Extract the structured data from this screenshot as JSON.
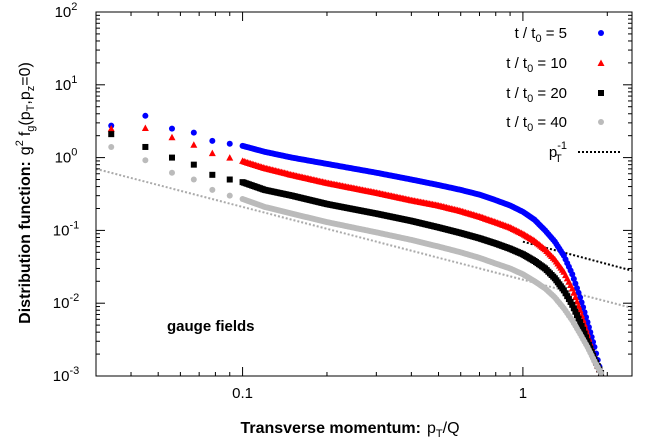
{
  "chart_data": {
    "type": "scatter",
    "xscale": "log",
    "yscale": "log",
    "xlim": [
      0.03,
      2.45
    ],
    "ylim": [
      0.001,
      100
    ],
    "xticks": [
      {
        "value": 0.1,
        "label": "0.1"
      },
      {
        "value": 1,
        "label": "1"
      }
    ],
    "yticks": [
      {
        "value": 0.001,
        "base": "10",
        "exp": "-3"
      },
      {
        "value": 0.01,
        "base": "10",
        "exp": "-2"
      },
      {
        "value": 0.1,
        "base": "10",
        "exp": "-1"
      },
      {
        "value": 1,
        "base": "10",
        "exp": "0"
      },
      {
        "value": 10,
        "base": "10",
        "exp": "1"
      },
      {
        "value": 100,
        "base": "10",
        "exp": "2"
      }
    ],
    "xlabel": {
      "bold": "Transverse momentum:",
      "var": "p",
      "sub": "T",
      "rest": "/Q"
    },
    "ylabel": {
      "bold": "Distribution function:",
      "g": "g",
      "gexp": "2",
      "f": "f",
      "fsub": "g",
      "args": "(p",
      "a1": "T",
      "mid": ",p",
      "a2": "z",
      "end": "=0)"
    },
    "annotation": "gauge fields",
    "legend_position": "top-right",
    "series": [
      {
        "name": {
          "pre": "t / t",
          "sub": "0",
          "post": " =   5"
        },
        "color": "#0000ff",
        "marker": "circle",
        "points": [
          [
            0.034,
            2.75
          ],
          [
            0.045,
            3.75
          ],
          [
            0.056,
            2.5
          ],
          [
            0.067,
            2.2
          ],
          [
            0.078,
            1.7
          ],
          [
            0.09,
            1.55
          ],
          [
            0.1,
            1.45
          ],
          [
            0.12,
            1.2
          ],
          [
            0.15,
            1.0
          ],
          [
            0.2,
            0.82
          ],
          [
            0.3,
            0.62
          ],
          [
            0.4,
            0.5
          ],
          [
            0.5,
            0.42
          ],
          [
            0.6,
            0.36
          ],
          [
            0.7,
            0.31
          ],
          [
            0.8,
            0.26
          ],
          [
            0.9,
            0.22
          ],
          [
            1.0,
            0.18
          ],
          [
            1.1,
            0.14
          ],
          [
            1.2,
            0.1
          ],
          [
            1.3,
            0.07
          ],
          [
            1.4,
            0.045
          ],
          [
            1.5,
            0.025
          ],
          [
            1.6,
            0.012
          ],
          [
            1.7,
            0.0055
          ],
          [
            1.8,
            0.0025
          ],
          [
            1.9,
            0.0011
          ]
        ]
      },
      {
        "name": {
          "pre": "t / t",
          "sub": "0",
          "post": " = 10"
        },
        "color": "#ff0000",
        "marker": "triangle",
        "points": [
          [
            0.034,
            2.5
          ],
          [
            0.045,
            2.55
          ],
          [
            0.056,
            1.9
          ],
          [
            0.067,
            1.5
          ],
          [
            0.078,
            1.15
          ],
          [
            0.09,
            1.0
          ],
          [
            0.1,
            0.9
          ],
          [
            0.12,
            0.72
          ],
          [
            0.15,
            0.58
          ],
          [
            0.2,
            0.45
          ],
          [
            0.3,
            0.33
          ],
          [
            0.4,
            0.26
          ],
          [
            0.5,
            0.22
          ],
          [
            0.6,
            0.185
          ],
          [
            0.7,
            0.155
          ],
          [
            0.8,
            0.13
          ],
          [
            0.9,
            0.11
          ],
          [
            1.0,
            0.09
          ],
          [
            1.1,
            0.072
          ],
          [
            1.2,
            0.055
          ],
          [
            1.3,
            0.04
          ],
          [
            1.4,
            0.027
          ],
          [
            1.5,
            0.016
          ],
          [
            1.6,
            0.008
          ],
          [
            1.7,
            0.0038
          ],
          [
            1.8,
            0.0018
          ],
          [
            1.9,
            0.0011
          ]
        ]
      },
      {
        "name": {
          "pre": "t / t",
          "sub": "0",
          "post": " = 20"
        },
        "color": "#000000",
        "marker": "square",
        "points": [
          [
            0.034,
            2.1
          ],
          [
            0.045,
            1.4
          ],
          [
            0.056,
            1.0
          ],
          [
            0.067,
            0.8
          ],
          [
            0.078,
            0.58
          ],
          [
            0.09,
            0.5
          ],
          [
            0.1,
            0.46
          ],
          [
            0.12,
            0.36
          ],
          [
            0.15,
            0.3
          ],
          [
            0.2,
            0.23
          ],
          [
            0.3,
            0.17
          ],
          [
            0.4,
            0.135
          ],
          [
            0.5,
            0.11
          ],
          [
            0.6,
            0.092
          ],
          [
            0.7,
            0.078
          ],
          [
            0.8,
            0.066
          ],
          [
            0.9,
            0.056
          ],
          [
            1.0,
            0.047
          ],
          [
            1.1,
            0.038
          ],
          [
            1.2,
            0.03
          ],
          [
            1.3,
            0.022
          ],
          [
            1.4,
            0.015
          ],
          [
            1.5,
            0.0095
          ],
          [
            1.6,
            0.0055
          ],
          [
            1.7,
            0.003
          ],
          [
            1.8,
            0.0017
          ],
          [
            1.9,
            0.0011
          ]
        ]
      },
      {
        "name": {
          "pre": "t / t",
          "sub": "0",
          "post": " = 40"
        },
        "color": "#bbbbbb",
        "marker": "circle",
        "points": [
          [
            0.034,
            1.4
          ],
          [
            0.045,
            0.92
          ],
          [
            0.056,
            0.62
          ],
          [
            0.067,
            0.5
          ],
          [
            0.078,
            0.36
          ],
          [
            0.09,
            0.3
          ],
          [
            0.1,
            0.27
          ],
          [
            0.12,
            0.21
          ],
          [
            0.15,
            0.17
          ],
          [
            0.2,
            0.13
          ],
          [
            0.3,
            0.094
          ],
          [
            0.4,
            0.074
          ],
          [
            0.5,
            0.06
          ],
          [
            0.6,
            0.05
          ],
          [
            0.7,
            0.042
          ],
          [
            0.8,
            0.035
          ],
          [
            0.9,
            0.03
          ],
          [
            1.0,
            0.025
          ],
          [
            1.1,
            0.02
          ],
          [
            1.2,
            0.016
          ],
          [
            1.3,
            0.012
          ],
          [
            1.4,
            0.0085
          ],
          [
            1.5,
            0.0058
          ],
          [
            1.6,
            0.0038
          ],
          [
            1.7,
            0.0025
          ],
          [
            1.8,
            0.0016
          ],
          [
            1.9,
            0.0011
          ]
        ]
      }
    ],
    "reference_lines": [
      {
        "name": {
          "pre": "p",
          "sup": "-1",
          "sub": "T"
        },
        "color": "#000000",
        "style": "dotted",
        "from": [
          1.0,
          0.07
        ],
        "to": [
          2.45,
          0.028
        ]
      },
      {
        "color": "#aaaaaa",
        "style": "dotted",
        "from": [
          0.03,
          0.7
        ],
        "to": [
          2.45,
          0.0086
        ]
      }
    ]
  }
}
